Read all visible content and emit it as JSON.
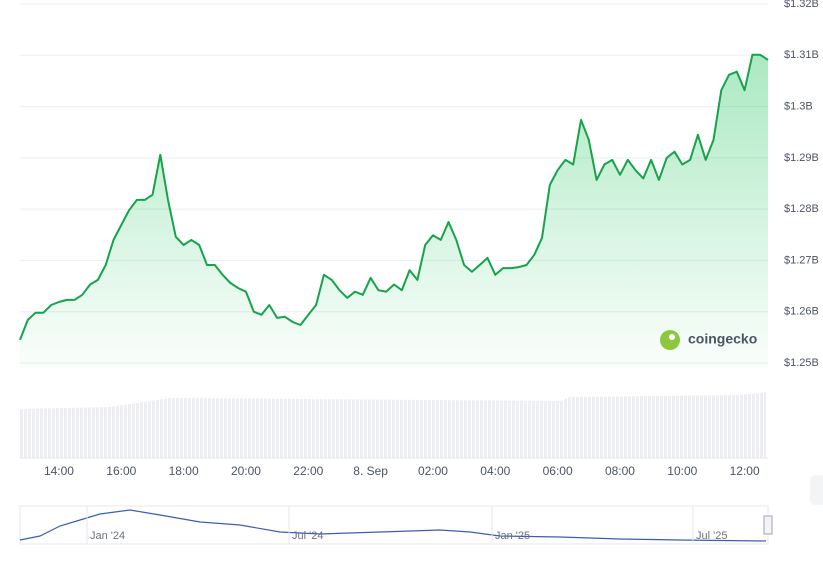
{
  "chart_data": {
    "type": "line",
    "color": "#16a34a",
    "grid": true,
    "categories": [
      null,
      null,
      null,
      null,
      null,
      "14:00",
      null,
      null,
      null,
      null,
      null,
      null,
      null,
      "16:00",
      null,
      null,
      null,
      null,
      null,
      null,
      null,
      "18:00",
      null,
      null,
      null,
      null,
      null,
      null,
      null,
      "20:00",
      null,
      null,
      null,
      null,
      null,
      null,
      null,
      "22:00",
      null,
      null,
      null,
      null,
      null,
      null,
      null,
      "8. Sep",
      null,
      null,
      null,
      null,
      null,
      null,
      null,
      "02:00",
      null,
      null,
      null,
      null,
      null,
      null,
      null,
      "04:00",
      null,
      null,
      null,
      null,
      null,
      null,
      null,
      "06:00",
      null,
      null,
      null,
      null,
      null,
      null,
      null,
      "08:00",
      null,
      null,
      null,
      null,
      null,
      null,
      null,
      "10:00",
      null,
      null,
      null,
      null,
      null,
      null,
      null,
      "12:00",
      null,
      null,
      null
    ],
    "values": [
      1.2545,
      1.2584,
      1.2598,
      1.2598,
      1.2613,
      1.2619,
      1.2623,
      1.2623,
      1.2633,
      1.2653,
      1.2662,
      1.2691,
      1.274,
      1.2769,
      1.2798,
      1.2818,
      1.2818,
      1.2828,
      1.2906,
      1.2818,
      1.2746,
      1.273,
      1.274,
      1.273,
      1.2691,
      1.2691,
      1.2672,
      1.2656,
      1.2646,
      1.2639,
      1.26,
      1.2594,
      1.2613,
      1.2588,
      1.259,
      1.258,
      1.2574,
      1.2594,
      1.2613,
      1.2672,
      1.2662,
      1.2642,
      1.2627,
      1.2639,
      1.2633,
      1.2666,
      1.2642,
      1.2639,
      1.2653,
      1.2642,
      1.2681,
      1.2662,
      1.273,
      1.2749,
      1.274,
      1.2775,
      1.274,
      1.2691,
      1.2678,
      1.2691,
      1.2705,
      1.2672,
      1.2685,
      1.2685,
      1.2687,
      1.2691,
      1.2711,
      1.2744,
      1.2847,
      1.2876,
      1.2896,
      1.2887,
      1.2974,
      1.2935,
      1.2857,
      1.2887,
      1.2896,
      1.2867,
      1.2896,
      1.2876,
      1.286,
      1.2896,
      1.2857,
      1.29,
      1.2912,
      1.2887,
      1.2896,
      1.2945,
      1.2896,
      1.2935,
      1.3032,
      1.3062,
      1.3068,
      1.3032,
      1.3101,
      1.3101,
      1.3091
    ],
    "ylim": [
      1.25,
      1.32
    ],
    "yticks": [
      {
        "value": 1.25,
        "label": "$1.25B"
      },
      {
        "value": 1.26,
        "label": "$1.26B"
      },
      {
        "value": 1.27,
        "label": "$1.27B"
      },
      {
        "value": 1.28,
        "label": "$1.28B"
      },
      {
        "value": 1.29,
        "label": "$1.29B"
      },
      {
        "value": 1.3,
        "label": "$1.3B"
      },
      {
        "value": 1.31,
        "label": "$1.31B"
      },
      {
        "value": 1.32,
        "label": "$1.32B"
      }
    ],
    "watermark": "coingecko",
    "navigator_labels": [
      "Jan '24",
      "Jul '24",
      "Jan '25",
      "Jul '25"
    ]
  }
}
